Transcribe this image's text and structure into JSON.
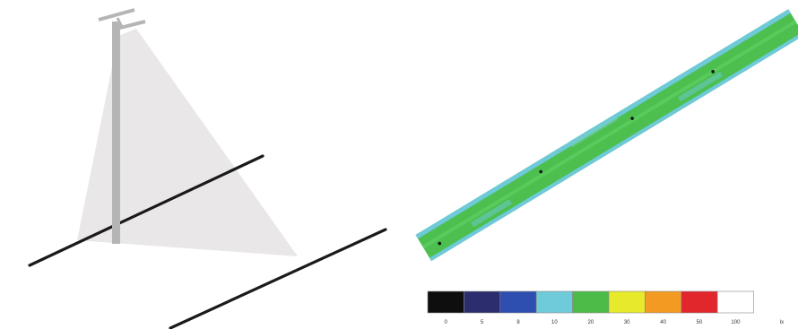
{
  "illustration": {
    "parts": [
      "street-light-pole",
      "light-cone",
      "road-edge-near",
      "road-edge-far"
    ],
    "pole_color": "#b5b5b5",
    "cone_color": "#e8e6e6",
    "road_line_color": "#1a1a1a"
  },
  "luminance_map": {
    "base_color": "#4cbf4f",
    "edge_color": "#6ec9d8",
    "marker_count": 4
  },
  "color_scale": {
    "swatches": [
      {
        "color": "#0e0e0e",
        "label": "0"
      },
      {
        "color": "#2b2d6e",
        "label": "5"
      },
      {
        "color": "#2e4fb0",
        "label": "8"
      },
      {
        "color": "#6fcad9",
        "label": "10"
      },
      {
        "color": "#4cbb48",
        "label": "20"
      },
      {
        "color": "#e6ea2a",
        "label": "30"
      },
      {
        "color": "#f39a22",
        "label": "40"
      },
      {
        "color": "#e1262c",
        "label": "50"
      },
      {
        "color": "#ffffff",
        "label": "100"
      }
    ],
    "unit_label": "lx"
  }
}
